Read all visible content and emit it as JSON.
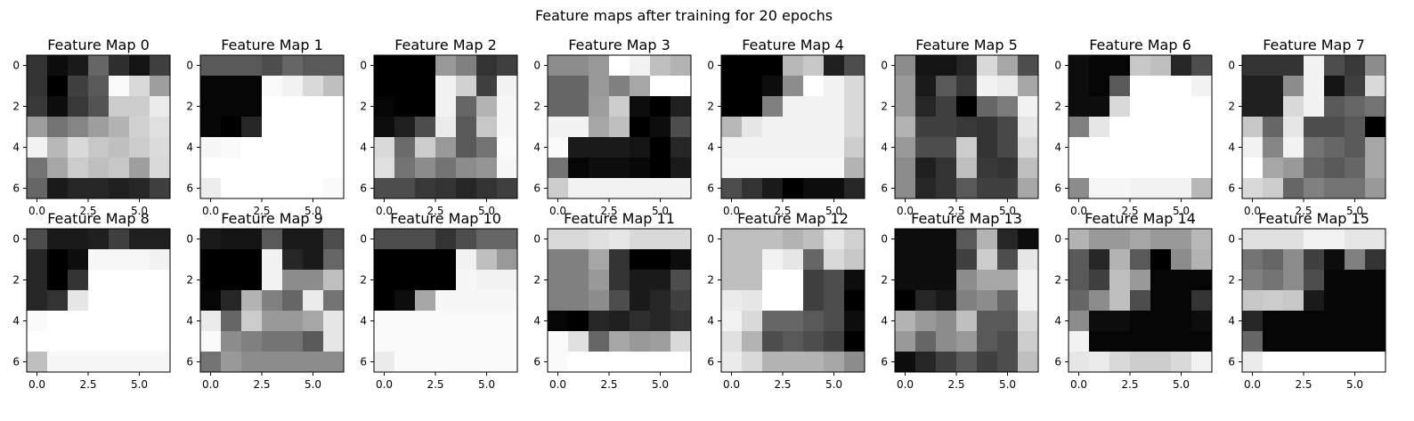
{
  "figure": {
    "title": "Feature maps after training for 20 epochs"
  },
  "chart_data": {
    "type": "heatmap",
    "colormap": "gray",
    "value_range": [
      0,
      1
    ],
    "x_ticks": [
      "0.0",
      "2.5",
      "5.0"
    ],
    "x_tick_values": [
      0,
      2.5,
      5
    ],
    "y_ticks": [
      "0",
      "2",
      "4",
      "6"
    ],
    "y_tick_values": [
      0,
      2,
      4,
      6
    ],
    "maps": [
      {
        "title": "Feature Map 0",
        "values": [
          [
            0.2,
            0.05,
            0.1,
            0.4,
            0.18,
            0.08,
            0.25
          ],
          [
            0.2,
            0.0,
            0.25,
            0.35,
            0.98,
            0.85,
            0.62
          ],
          [
            0.22,
            0.05,
            0.22,
            0.32,
            0.8,
            0.8,
            0.92
          ],
          [
            0.62,
            0.45,
            0.52,
            0.62,
            0.7,
            0.82,
            0.88
          ],
          [
            0.95,
            0.72,
            0.85,
            0.78,
            0.75,
            0.8,
            0.86
          ],
          [
            0.45,
            0.65,
            0.8,
            0.75,
            0.78,
            0.62,
            0.85
          ],
          [
            0.4,
            0.1,
            0.15,
            0.15,
            0.12,
            0.15,
            0.25
          ]
        ]
      },
      {
        "title": "Feature Map 1",
        "values": [
          [
            0.35,
            0.35,
            0.35,
            0.3,
            0.4,
            0.35,
            0.35
          ],
          [
            0.02,
            0.02,
            0.02,
            0.98,
            0.95,
            0.85,
            0.75
          ],
          [
            0.02,
            0.02,
            0.02,
            1.0,
            1.0,
            1.0,
            1.0
          ],
          [
            0.02,
            0.0,
            0.15,
            1.0,
            1.0,
            1.0,
            1.0
          ],
          [
            0.97,
            0.98,
            1.0,
            1.0,
            1.0,
            1.0,
            1.0
          ],
          [
            1.0,
            1.0,
            1.0,
            1.0,
            1.0,
            1.0,
            1.0
          ],
          [
            0.93,
            1.0,
            1.0,
            1.0,
            1.0,
            1.0,
            0.98
          ]
        ]
      },
      {
        "title": "Feature Map 2",
        "values": [
          [
            0.0,
            0.0,
            0.0,
            0.6,
            0.5,
            0.2,
            0.25
          ],
          [
            0.0,
            0.0,
            0.0,
            0.95,
            0.82,
            0.25,
            0.95
          ],
          [
            0.02,
            0.0,
            0.0,
            0.95,
            0.4,
            0.7,
            0.97
          ],
          [
            0.05,
            0.12,
            0.3,
            0.92,
            0.35,
            0.78,
            0.97
          ],
          [
            0.85,
            0.42,
            0.8,
            0.6,
            0.35,
            0.45,
            0.98
          ],
          [
            0.88,
            0.45,
            0.55,
            0.45,
            0.55,
            0.58,
            0.97
          ],
          [
            0.3,
            0.3,
            0.22,
            0.2,
            0.15,
            0.2,
            0.25
          ]
        ]
      },
      {
        "title": "Feature Map 3",
        "values": [
          [
            0.55,
            0.55,
            0.6,
            1.0,
            0.95,
            0.75,
            0.7
          ],
          [
            0.4,
            0.4,
            0.6,
            0.5,
            0.65,
            1.0,
            1.0
          ],
          [
            0.4,
            0.4,
            0.62,
            0.8,
            0.05,
            0.0,
            0.12
          ],
          [
            0.95,
            0.95,
            0.65,
            0.75,
            0.0,
            0.05,
            0.3
          ],
          [
            0.98,
            0.1,
            0.1,
            0.1,
            0.08,
            0.0,
            0.15
          ],
          [
            0.45,
            0.02,
            0.05,
            0.05,
            0.03,
            0.0,
            0.1
          ],
          [
            0.8,
            0.95,
            0.95,
            0.95,
            0.95,
            0.95,
            0.95
          ]
        ]
      },
      {
        "title": "Feature Map 4",
        "values": [
          [
            0.0,
            0.0,
            0.0,
            0.72,
            0.78,
            0.12,
            0.3
          ],
          [
            0.0,
            0.0,
            0.05,
            0.55,
            1.0,
            0.95,
            0.85
          ],
          [
            0.0,
            0.0,
            0.5,
            0.95,
            0.95,
            0.95,
            0.85
          ],
          [
            0.72,
            0.9,
            0.95,
            0.95,
            0.95,
            0.95,
            0.85
          ],
          [
            0.95,
            0.95,
            0.95,
            0.95,
            0.95,
            0.95,
            0.8
          ],
          [
            0.97,
            0.97,
            0.97,
            0.97,
            0.97,
            0.97,
            0.7
          ],
          [
            0.3,
            0.2,
            0.1,
            0.0,
            0.05,
            0.05,
            0.15
          ]
        ]
      },
      {
        "title": "Feature Map 5",
        "values": [
          [
            0.55,
            0.08,
            0.08,
            0.15,
            0.85,
            0.65,
            0.3
          ],
          [
            0.6,
            0.1,
            0.35,
            0.22,
            0.95,
            0.92,
            0.65
          ],
          [
            0.6,
            0.15,
            0.25,
            0.0,
            0.4,
            0.48,
            0.95
          ],
          [
            0.7,
            0.25,
            0.25,
            0.22,
            0.2,
            0.28,
            0.9
          ],
          [
            0.6,
            0.3,
            0.3,
            0.8,
            0.2,
            0.28,
            0.85
          ],
          [
            0.55,
            0.12,
            0.2,
            0.75,
            0.22,
            0.2,
            0.75
          ],
          [
            0.55,
            0.15,
            0.2,
            0.35,
            0.25,
            0.25,
            0.65
          ]
        ]
      },
      {
        "title": "Feature Map 6",
        "values": [
          [
            0.05,
            0.02,
            0.02,
            0.78,
            0.75,
            0.15,
            0.3
          ],
          [
            0.05,
            0.02,
            0.35,
            1.0,
            1.0,
            1.0,
            0.95
          ],
          [
            0.05,
            0.05,
            0.85,
            1.0,
            1.0,
            1.0,
            1.0
          ],
          [
            0.5,
            0.9,
            1.0,
            1.0,
            1.0,
            1.0,
            1.0
          ],
          [
            1.0,
            1.0,
            1.0,
            1.0,
            1.0,
            1.0,
            1.0
          ],
          [
            1.0,
            1.0,
            1.0,
            1.0,
            1.0,
            1.0,
            1.0
          ],
          [
            0.55,
            0.97,
            0.97,
            0.95,
            0.95,
            0.95,
            0.72
          ]
        ]
      },
      {
        "title": "Feature Map 7",
        "values": [
          [
            0.2,
            0.2,
            0.2,
            0.95,
            0.3,
            0.22,
            0.55
          ],
          [
            0.12,
            0.12,
            0.55,
            0.95,
            0.08,
            0.25,
            0.85
          ],
          [
            0.12,
            0.12,
            0.85,
            0.95,
            0.35,
            0.4,
            0.45
          ],
          [
            0.78,
            0.4,
            0.9,
            0.3,
            0.3,
            0.35,
            0.0
          ],
          [
            0.95,
            0.52,
            0.95,
            0.45,
            0.4,
            0.35,
            0.65
          ],
          [
            1.0,
            0.65,
            0.6,
            0.4,
            0.35,
            0.4,
            0.65
          ],
          [
            0.85,
            0.8,
            0.4,
            0.5,
            0.45,
            0.45,
            0.6
          ]
        ]
      },
      {
        "title": "Feature Map 8",
        "values": [
          [
            0.3,
            0.1,
            0.1,
            0.12,
            0.25,
            0.12,
            0.12
          ],
          [
            0.15,
            0.0,
            0.05,
            0.97,
            0.97,
            0.97,
            0.95
          ],
          [
            0.15,
            0.0,
            0.2,
            1.0,
            1.0,
            1.0,
            1.0
          ],
          [
            0.15,
            0.2,
            0.9,
            1.0,
            1.0,
            1.0,
            1.0
          ],
          [
            0.98,
            1.0,
            1.0,
            1.0,
            1.0,
            1.0,
            1.0
          ],
          [
            1.0,
            1.0,
            1.0,
            1.0,
            1.0,
            1.0,
            1.0
          ],
          [
            0.75,
            0.97,
            0.97,
            0.97,
            0.97,
            0.97,
            0.97
          ]
        ]
      },
      {
        "title": "Feature Map 9",
        "values": [
          [
            0.1,
            0.08,
            0.08,
            0.35,
            0.1,
            0.1,
            0.3
          ],
          [
            0.0,
            0.0,
            0.0,
            0.95,
            0.15,
            0.1,
            0.4
          ],
          [
            0.0,
            0.0,
            0.0,
            0.95,
            0.55,
            0.55,
            0.75
          ],
          [
            0.02,
            0.15,
            0.7,
            0.5,
            0.4,
            0.92,
            0.45
          ],
          [
            0.92,
            0.4,
            0.8,
            0.6,
            0.6,
            0.65,
            0.9
          ],
          [
            0.98,
            0.55,
            0.5,
            0.45,
            0.45,
            0.35,
            0.9
          ],
          [
            0.45,
            0.6,
            0.55,
            0.55,
            0.55,
            0.55,
            0.55
          ]
        ]
      },
      {
        "title": "Feature Map 10",
        "values": [
          [
            0.3,
            0.3,
            0.3,
            0.2,
            0.3,
            0.4,
            0.4
          ],
          [
            0.0,
            0.0,
            0.0,
            0.0,
            0.95,
            0.75,
            0.6
          ],
          [
            0.0,
            0.0,
            0.0,
            0.0,
            0.97,
            0.95,
            0.95
          ],
          [
            0.0,
            0.05,
            0.65,
            0.97,
            0.97,
            0.97,
            0.97
          ],
          [
            0.98,
            0.98,
            0.98,
            0.98,
            0.98,
            0.98,
            0.98
          ],
          [
            0.98,
            0.98,
            0.98,
            0.98,
            0.98,
            0.98,
            0.98
          ],
          [
            0.92,
            0.98,
            0.98,
            0.98,
            0.98,
            0.98,
            0.98
          ]
        ]
      },
      {
        "title": "Feature Map 11",
        "values": [
          [
            0.85,
            0.85,
            0.88,
            0.9,
            0.85,
            0.85,
            0.85
          ],
          [
            0.5,
            0.5,
            0.65,
            0.2,
            0.0,
            0.0,
            0.05
          ],
          [
            0.5,
            0.5,
            0.6,
            0.2,
            0.1,
            0.1,
            0.3
          ],
          [
            0.5,
            0.5,
            0.55,
            0.3,
            0.1,
            0.15,
            0.25
          ],
          [
            0.02,
            0.0,
            0.15,
            0.12,
            0.18,
            0.15,
            0.2
          ],
          [
            0.98,
            0.88,
            0.4,
            0.65,
            0.6,
            0.62,
            0.85
          ],
          [
            0.98,
            1.0,
            1.0,
            1.0,
            1.0,
            1.0,
            1.0
          ]
        ]
      },
      {
        "title": "Feature Map 12",
        "values": [
          [
            0.75,
            0.75,
            0.75,
            0.7,
            0.75,
            0.9,
            0.82
          ],
          [
            0.75,
            0.75,
            0.95,
            0.9,
            0.4,
            0.85,
            0.78
          ],
          [
            0.75,
            0.75,
            1.0,
            1.0,
            0.25,
            0.3,
            0.05
          ],
          [
            0.92,
            0.9,
            1.0,
            1.0,
            0.25,
            0.3,
            0.0
          ],
          [
            0.95,
            0.85,
            0.4,
            0.4,
            0.35,
            0.3,
            0.05
          ],
          [
            0.88,
            0.7,
            0.3,
            0.35,
            0.3,
            0.25,
            0.0
          ],
          [
            0.92,
            0.85,
            0.7,
            0.7,
            0.7,
            0.65,
            0.55
          ]
        ]
      },
      {
        "title": "Feature Map 13",
        "values": [
          [
            0.05,
            0.05,
            0.05,
            0.35,
            0.7,
            0.15,
            0.05
          ],
          [
            0.05,
            0.05,
            0.05,
            0.25,
            0.8,
            0.3,
            0.9
          ],
          [
            0.05,
            0.05,
            0.05,
            0.55,
            0.65,
            0.65,
            0.95
          ],
          [
            0.0,
            0.15,
            0.1,
            0.5,
            0.55,
            0.4,
            0.95
          ],
          [
            0.7,
            0.6,
            0.55,
            0.75,
            0.35,
            0.35,
            0.85
          ],
          [
            0.6,
            0.4,
            0.55,
            0.6,
            0.35,
            0.3,
            0.8
          ],
          [
            0.05,
            0.15,
            0.25,
            0.35,
            0.25,
            0.3,
            0.75
          ]
        ]
      },
      {
        "title": "Feature Map 14",
        "values": [
          [
            0.7,
            0.6,
            0.6,
            0.65,
            0.6,
            0.6,
            0.72
          ],
          [
            0.35,
            0.15,
            0.7,
            0.35,
            0.0,
            0.55,
            0.7
          ],
          [
            0.35,
            0.25,
            0.75,
            0.6,
            0.02,
            0.02,
            0.02
          ],
          [
            0.4,
            0.55,
            0.75,
            0.3,
            0.02,
            0.02,
            0.2
          ],
          [
            0.55,
            0.05,
            0.05,
            0.02,
            0.02,
            0.02,
            0.05
          ],
          [
            0.95,
            0.02,
            0.02,
            0.02,
            0.02,
            0.02,
            0.02
          ],
          [
            0.9,
            0.92,
            0.85,
            0.8,
            0.8,
            0.85,
            0.95
          ]
        ]
      },
      {
        "title": "Feature Map 15",
        "values": [
          [
            0.88,
            0.88,
            0.88,
            0.95,
            0.95,
            0.9,
            0.9
          ],
          [
            0.45,
            0.4,
            0.55,
            0.25,
            0.05,
            0.5,
            0.2
          ],
          [
            0.5,
            0.45,
            0.55,
            0.3,
            0.02,
            0.02,
            0.02
          ],
          [
            0.78,
            0.8,
            0.78,
            0.1,
            0.02,
            0.02,
            0.02
          ],
          [
            0.15,
            0.02,
            0.02,
            0.02,
            0.02,
            0.02,
            0.02
          ],
          [
            0.4,
            0.02,
            0.02,
            0.02,
            0.02,
            0.02,
            0.02
          ],
          [
            0.92,
            1.0,
            1.0,
            1.0,
            1.0,
            1.0,
            1.0
          ]
        ]
      }
    ]
  }
}
